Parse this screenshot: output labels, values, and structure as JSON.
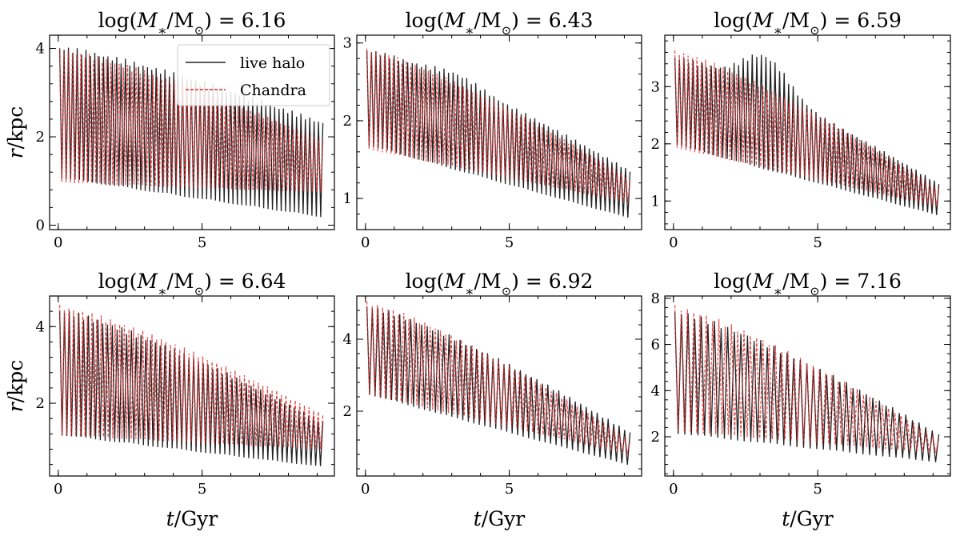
{
  "figure": {
    "legend": {
      "entries": [
        {
          "label": "live halo",
          "color": "#222222",
          "style": "solid"
        },
        {
          "label": "Chandra",
          "color": "#e0282a",
          "style": "dashed"
        }
      ]
    },
    "shared_xlabel": {
      "var": "t",
      "unit": "/Gyr"
    },
    "shared_ylabel": {
      "var": "r",
      "unit": "/kpc"
    }
  },
  "chart_data": [
    {
      "type": "line",
      "title": "log(M*/M⊙) = 6.16",
      "title_value": "6.16",
      "xlim": [
        -0.3,
        9.6
      ],
      "ylim": [
        -0.1,
        4.3
      ],
      "xticks": [
        0,
        5
      ],
      "yticks": [
        0,
        2,
        4
      ],
      "xlabel": "",
      "ylabel": "r/kpc",
      "series": [
        {
          "name": "live halo",
          "t_end": 9.2,
          "n_orbits": 60,
          "peak_start": 4.0,
          "peak_end": 2.3,
          "trough_start": 1.1,
          "trough_end": 0.2,
          "peak_bump": 0
        },
        {
          "name": "Chandra",
          "t_end": 9.2,
          "n_orbits": 62,
          "peak_start": 3.95,
          "peak_end": 1.9,
          "trough_start": 1.0,
          "trough_end": 0.75,
          "peak_bump": 0
        }
      ]
    },
    {
      "type": "line",
      "title": "log(M*/M⊙) = 6.43",
      "title_value": "6.43",
      "xlim": [
        -0.3,
        9.6
      ],
      "ylim": [
        0.6,
        3.1
      ],
      "xticks": [
        0,
        5
      ],
      "yticks": [
        1,
        2,
        3
      ],
      "xlabel": "",
      "ylabel": "",
      "series": [
        {
          "name": "live halo",
          "t_end": 9.2,
          "n_orbits": 58,
          "peak_start": 2.9,
          "peak_end": 1.35,
          "trough_start": 1.7,
          "trough_end": 0.75,
          "peak_bump": 0.1
        },
        {
          "name": "Chandra",
          "t_end": 9.2,
          "n_orbits": 60,
          "peak_start": 2.9,
          "peak_end": 1.25,
          "trough_start": 1.65,
          "trough_end": 0.95,
          "peak_bump": 0
        }
      ]
    },
    {
      "type": "line",
      "title": "log(M*/M⊙) = 6.59",
      "title_value": "6.59",
      "xlim": [
        -0.3,
        9.6
      ],
      "ylim": [
        0.5,
        3.9
      ],
      "xticks": [
        0,
        5
      ],
      "yticks": [
        1,
        2,
        3
      ],
      "xlabel": "",
      "ylabel": "",
      "series": [
        {
          "name": "live halo",
          "t_end": 9.2,
          "n_orbits": 58,
          "peak_start": 3.5,
          "peak_end": 1.3,
          "trough_start": 2.0,
          "trough_end": 0.75,
          "peak_bump": 0.6
        },
        {
          "name": "Chandra",
          "t_end": 9.2,
          "n_orbits": 60,
          "peak_start": 3.6,
          "peak_end": 1.2,
          "trough_start": 1.95,
          "trough_end": 0.9,
          "peak_bump": 0
        }
      ]
    },
    {
      "type": "line",
      "title": "log(M*/M⊙) = 6.64",
      "title_value": "6.64",
      "xlim": [
        -0.3,
        9.6
      ],
      "ylim": [
        0.1,
        4.8
      ],
      "xticks": [
        0,
        5
      ],
      "yticks": [
        2,
        4
      ],
      "xlabel": "t/Gyr",
      "ylabel": "r/kpc",
      "series": [
        {
          "name": "live halo",
          "t_end": 9.2,
          "n_orbits": 55,
          "peak_start": 4.4,
          "peak_end": 1.5,
          "trough_start": 1.2,
          "trough_end": 0.35,
          "peak_bump": 0
        },
        {
          "name": "Chandra",
          "t_end": 9.2,
          "n_orbits": 57,
          "peak_start": 4.5,
          "peak_end": 1.7,
          "trough_start": 1.2,
          "trough_end": 0.8,
          "peak_bump": 0
        }
      ]
    },
    {
      "type": "line",
      "title": "log(M*/M⊙) = 6.92",
      "title_value": "6.92",
      "xlim": [
        -0.3,
        9.6
      ],
      "ylim": [
        0.2,
        5.2
      ],
      "xticks": [
        0,
        5
      ],
      "yticks": [
        2,
        4
      ],
      "xlabel": "t/Gyr",
      "ylabel": "",
      "series": [
        {
          "name": "live halo",
          "t_end": 9.2,
          "n_orbits": 48,
          "peak_start": 4.9,
          "peak_end": 1.4,
          "trough_start": 2.5,
          "trough_end": 0.5,
          "peak_bump": 0
        },
        {
          "name": "Chandra",
          "t_end": 9.2,
          "n_orbits": 50,
          "peak_start": 5.0,
          "peak_end": 1.2,
          "trough_start": 2.5,
          "trough_end": 0.8,
          "peak_bump": 0
        }
      ]
    },
    {
      "type": "line",
      "title": "log(M*/M⊙) = 7.16",
      "title_value": "7.16",
      "xlim": [
        -0.3,
        9.6
      ],
      "ylim": [
        0.3,
        8.1
      ],
      "xticks": [
        0,
        5
      ],
      "yticks": [
        2,
        4,
        6,
        8
      ],
      "xlabel": "t/Gyr",
      "ylabel": "",
      "series": [
        {
          "name": "live halo",
          "t_end": 9.2,
          "n_orbits": 40,
          "peak_start": 7.4,
          "peak_end": 2.1,
          "trough_start": 2.2,
          "trough_end": 0.9,
          "peak_bump": 0
        },
        {
          "name": "Chandra",
          "t_end": 9.2,
          "n_orbits": 42,
          "peak_start": 7.6,
          "peak_end": 1.9,
          "trough_start": 2.3,
          "trough_end": 1.3,
          "peak_bump": 0
        }
      ]
    }
  ]
}
